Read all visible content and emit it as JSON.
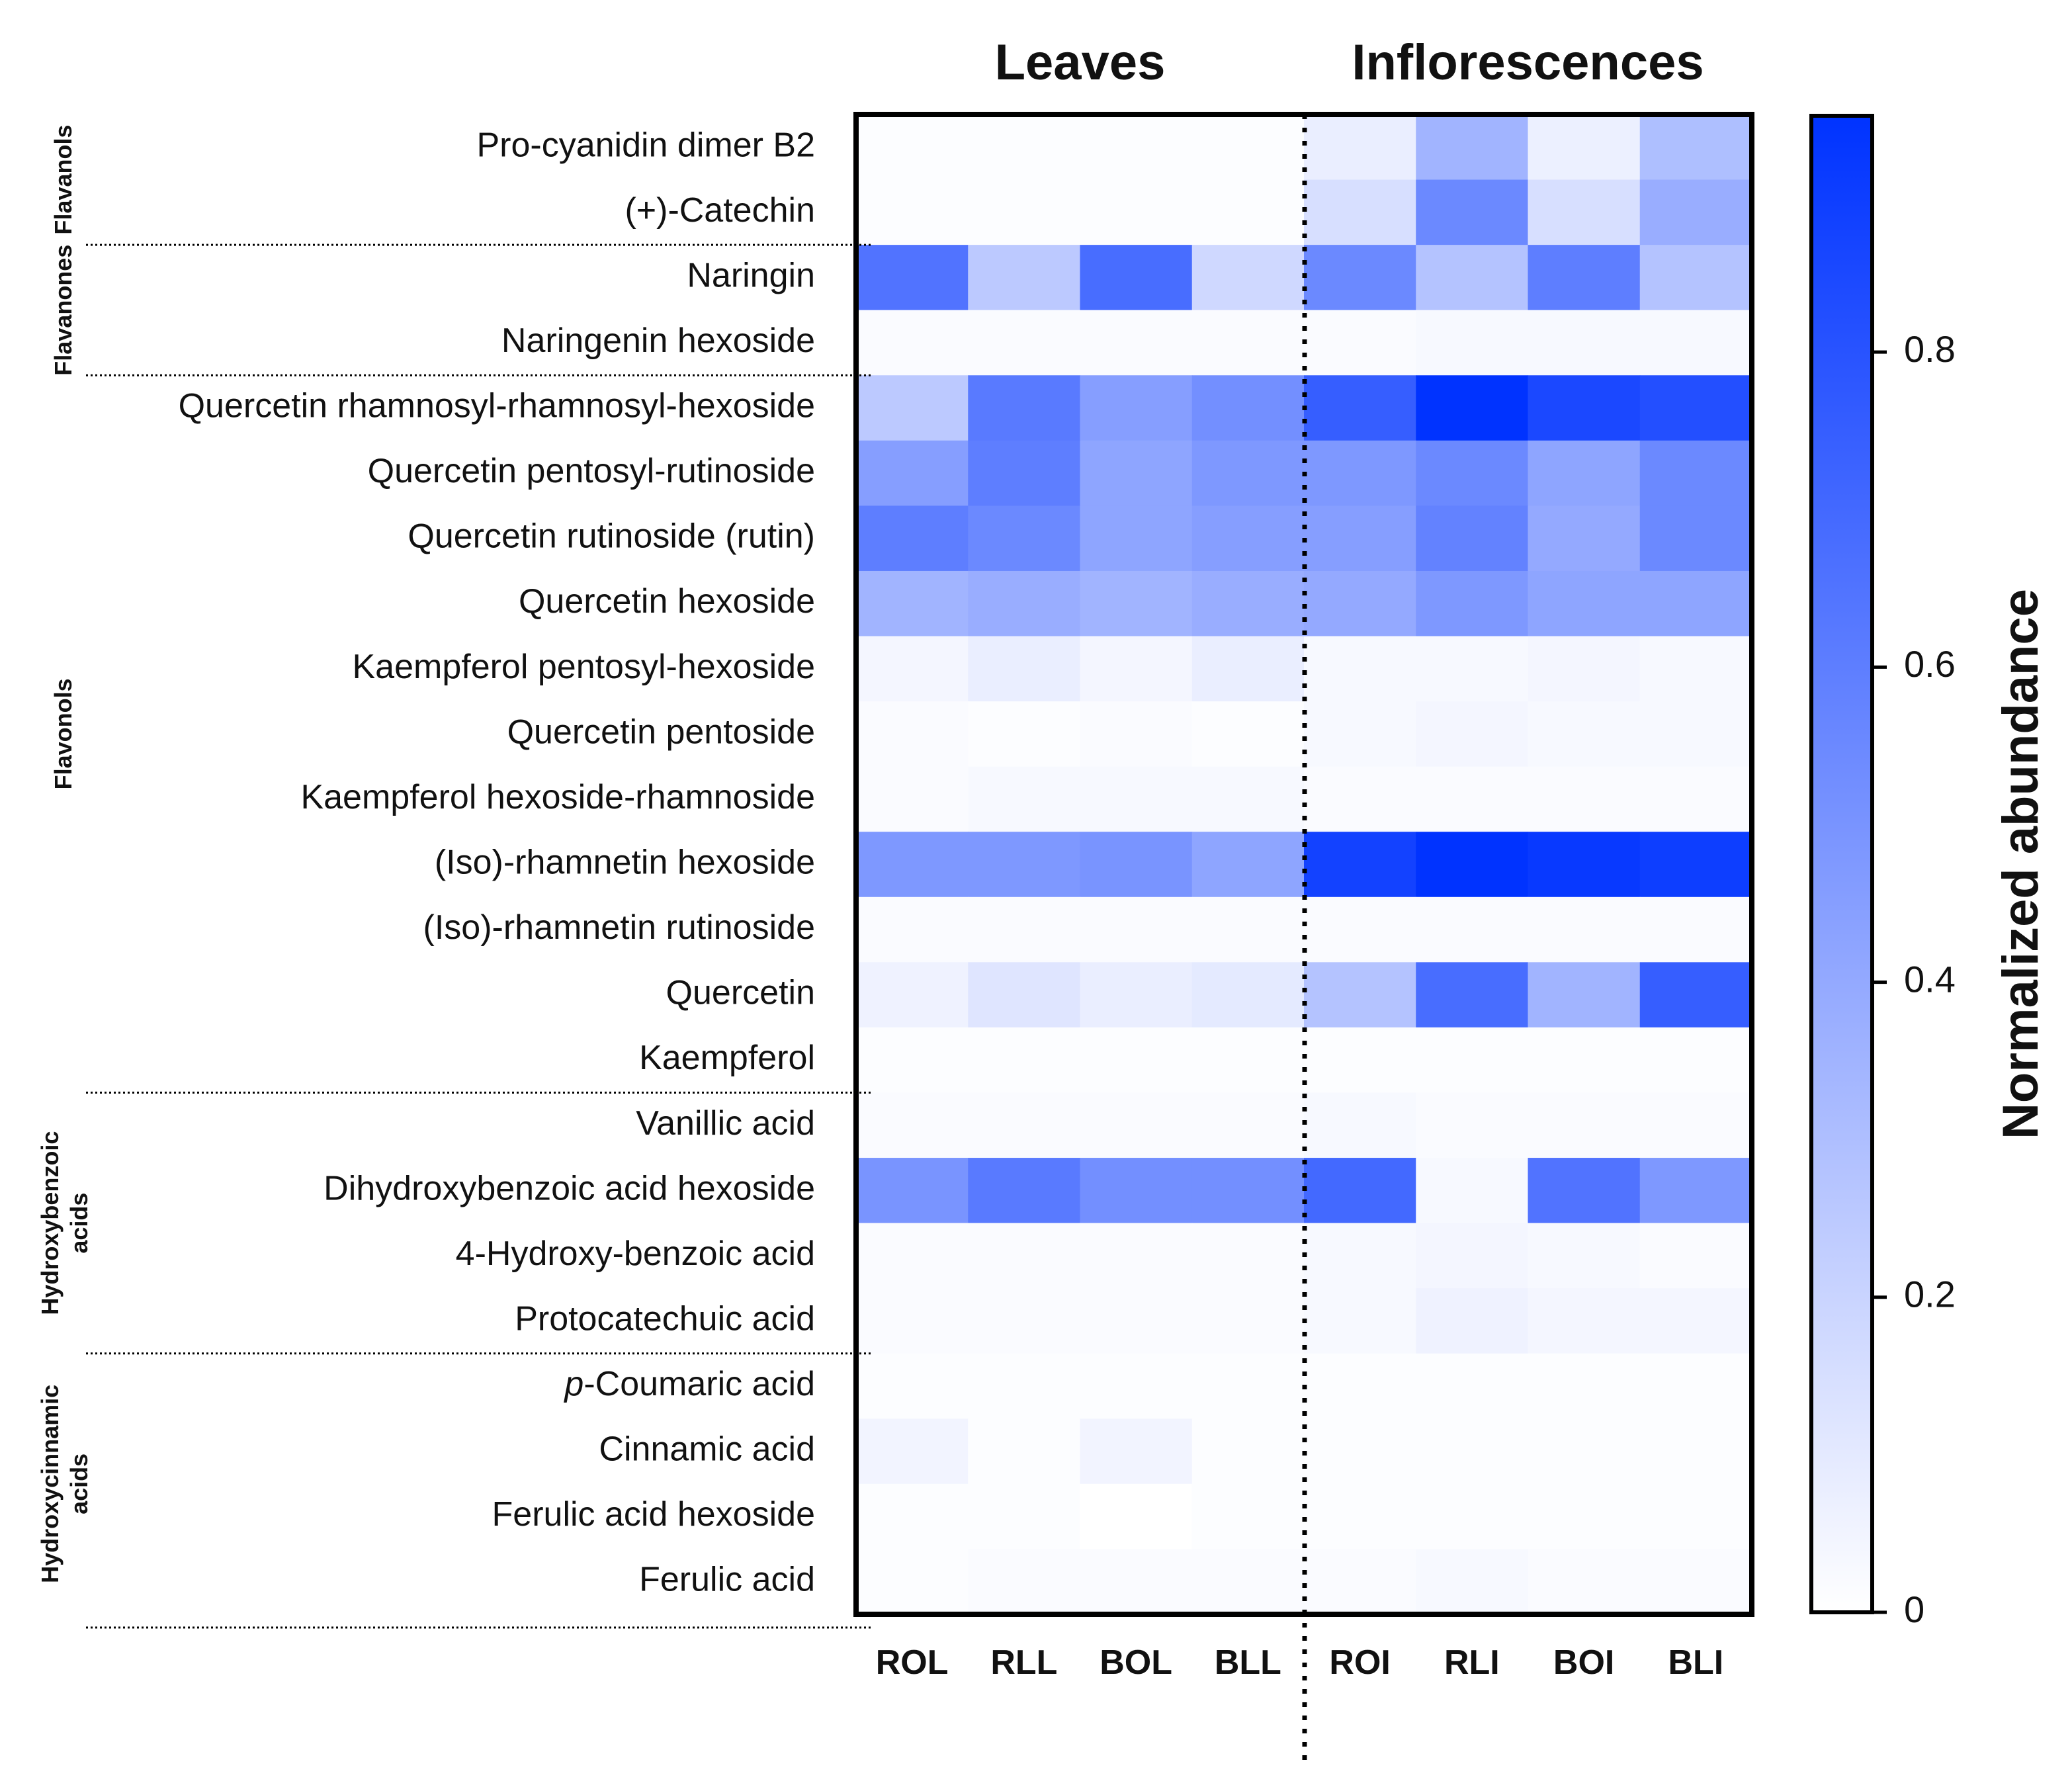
{
  "chart_data": {
    "type": "heatmap",
    "column_groups": [
      "Leaves",
      "Inflorescences"
    ],
    "columns": [
      "ROL",
      "RLL",
      "BOL",
      "BLL",
      "ROI",
      "RLI",
      "BOI",
      "BLI"
    ],
    "rows": [
      {
        "label": "Pro-cyanidin dimer B2",
        "italic_prefix": ""
      },
      {
        "label": "(+)-Catechin",
        "italic_prefix": ""
      },
      {
        "label": "Naringin",
        "italic_prefix": ""
      },
      {
        "label": "Naringenin hexoside",
        "italic_prefix": ""
      },
      {
        "label": "Quercetin rhamnosyl-rhamnosyl-hexoside",
        "italic_prefix": ""
      },
      {
        "label": "Quercetin pentosyl-rutinoside",
        "italic_prefix": ""
      },
      {
        "label": "Quercetin rutinoside (rutin)",
        "italic_prefix": ""
      },
      {
        "label": "Quercetin hexoside",
        "italic_prefix": ""
      },
      {
        "label": "Kaempferol pentosyl-hexoside",
        "italic_prefix": ""
      },
      {
        "label": "Quercetin pentoside",
        "italic_prefix": ""
      },
      {
        "label": "Kaempferol hexoside-rhamnoside",
        "italic_prefix": ""
      },
      {
        "label": "(Iso)-rhamnetin hexoside",
        "italic_prefix": ""
      },
      {
        "label": "(Iso)-rhamnetin rutinoside",
        "italic_prefix": ""
      },
      {
        "label": "Quercetin",
        "italic_prefix": ""
      },
      {
        "label": "Kaempferol",
        "italic_prefix": ""
      },
      {
        "label": "Vanillic acid",
        "italic_prefix": ""
      },
      {
        "label": "Dihydroxybenzoic acid hexoside",
        "italic_prefix": ""
      },
      {
        "label": "4-Hydroxy-benzoic acid",
        "italic_prefix": ""
      },
      {
        "label": "Protocatechuic acid",
        "italic_prefix": ""
      },
      {
        "label": "-Coumaric acid",
        "italic_prefix": "p"
      },
      {
        "label": "Cinnamic acid",
        "italic_prefix": ""
      },
      {
        "label": "Ferulic acid hexoside",
        "italic_prefix": ""
      },
      {
        "label": "Ferulic acid",
        "italic_prefix": ""
      }
    ],
    "values": [
      [
        0.01,
        0.01,
        0.01,
        0.01,
        0.08,
        0.35,
        0.07,
        0.3
      ],
      [
        0.01,
        0.01,
        0.01,
        0.01,
        0.15,
        0.55,
        0.15,
        0.38
      ],
      [
        0.65,
        0.25,
        0.68,
        0.18,
        0.55,
        0.28,
        0.6,
        0.28
      ],
      [
        0.02,
        0.02,
        0.02,
        0.02,
        0.02,
        0.03,
        0.03,
        0.03
      ],
      [
        0.25,
        0.62,
        0.45,
        0.52,
        0.75,
        0.95,
        0.85,
        0.82
      ],
      [
        0.45,
        0.6,
        0.42,
        0.48,
        0.48,
        0.55,
        0.42,
        0.55
      ],
      [
        0.6,
        0.55,
        0.42,
        0.45,
        0.45,
        0.58,
        0.4,
        0.55
      ],
      [
        0.35,
        0.38,
        0.35,
        0.38,
        0.4,
        0.48,
        0.42,
        0.42
      ],
      [
        0.04,
        0.08,
        0.04,
        0.08,
        0.03,
        0.03,
        0.04,
        0.03
      ],
      [
        0.02,
        0.01,
        0.02,
        0.01,
        0.03,
        0.04,
        0.03,
        0.03
      ],
      [
        0.02,
        0.03,
        0.03,
        0.03,
        0.02,
        0.02,
        0.02,
        0.02
      ],
      [
        0.48,
        0.48,
        0.5,
        0.42,
        0.88,
        0.95,
        0.92,
        0.9
      ],
      [
        0.02,
        0.02,
        0.02,
        0.02,
        0.02,
        0.02,
        0.02,
        0.02
      ],
      [
        0.06,
        0.12,
        0.08,
        0.1,
        0.28,
        0.68,
        0.35,
        0.75
      ],
      [
        0.01,
        0.01,
        0.01,
        0.01,
        0.01,
        0.01,
        0.01,
        0.01
      ],
      [
        0.02,
        0.02,
        0.02,
        0.02,
        0.03,
        0.02,
        0.02,
        0.02
      ],
      [
        0.5,
        0.62,
        0.52,
        0.52,
        0.7,
        0.03,
        0.65,
        0.48
      ],
      [
        0.02,
        0.02,
        0.02,
        0.02,
        0.03,
        0.04,
        0.03,
        0.02
      ],
      [
        0.02,
        0.02,
        0.02,
        0.02,
        0.03,
        0.06,
        0.04,
        0.04
      ],
      [
        0.01,
        0.01,
        0.01,
        0.01,
        0.01,
        0.01,
        0.01,
        0.01
      ],
      [
        0.05,
        0.01,
        0.05,
        0.01,
        0.01,
        0.01,
        0.01,
        0.01
      ],
      [
        0.01,
        0.01,
        0.0,
        0.01,
        0.01,
        0.01,
        0.01,
        0.01
      ],
      [
        0.01,
        0.02,
        0.02,
        0.02,
        0.02,
        0.03,
        0.02,
        0.02
      ]
    ],
    "row_classes": [
      {
        "label": "Flavanols",
        "rows": [
          0,
          1
        ]
      },
      {
        "label": "Flavanones",
        "rows": [
          2,
          3
        ]
      },
      {
        "label": "Flavonols",
        "rows": [
          4,
          14
        ]
      },
      {
        "label": [
          "Hydroxybenzoic",
          "acids"
        ],
        "rows": [
          15,
          18
        ]
      },
      {
        "label": [
          "Hydroxycinnamic",
          "acids"
        ],
        "rows": [
          19,
          22
        ]
      }
    ],
    "colorbar": {
      "title": "Normalized abundance",
      "range": [
        0,
        0.95
      ],
      "ticks": [
        0,
        0.2,
        0.4,
        0.6,
        0.8
      ],
      "tick_labels": [
        "0",
        "0.2",
        "0.4",
        "0.6",
        "0.8"
      ],
      "color_low": "#ffffff",
      "color_high": "#0033ff"
    }
  }
}
